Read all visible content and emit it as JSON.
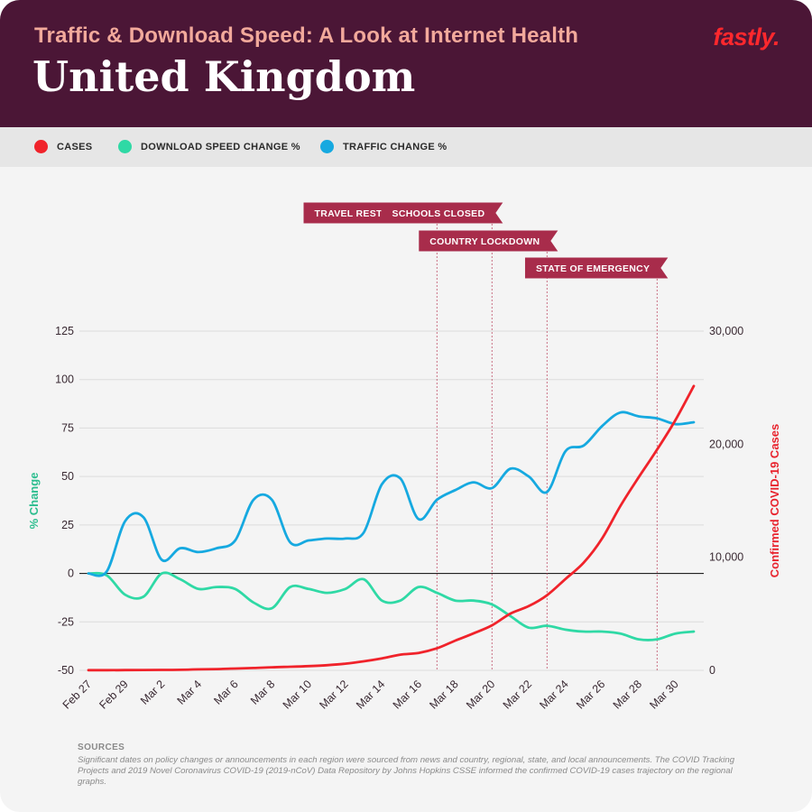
{
  "header": {
    "subtitle": "Traffic & Download Speed: A Look at Internet Health",
    "title": "United Kingdom",
    "logo": "fastly."
  },
  "legend": [
    {
      "label": "CASES",
      "color": "#f0232b"
    },
    {
      "label": "DOWNLOAD SPEED CHANGE %",
      "color": "#2fd9a5"
    },
    {
      "label": "TRAFFIC CHANGE %",
      "color": "#16a9e0"
    }
  ],
  "sources": {
    "title": "SOURCES",
    "text": "Significant dates on policy changes or announcements in each region were sourced from news and country, regional, state, and local announcements. The COVID Tracking Projects and 2019 Novel Coronavirus COVID-19 (2019-nCoV) Data Repository by Johns Hopkins CSSE informed the confirmed COVID-19 cases trajectory on the regional graphs."
  },
  "chart_data": {
    "type": "line",
    "x": [
      "Feb 27",
      "Feb 28",
      "Feb 29",
      "Mar 1",
      "Mar 2",
      "Mar 3",
      "Mar 4",
      "Mar 5",
      "Mar 6",
      "Mar 7",
      "Mar 8",
      "Mar 9",
      "Mar 10",
      "Mar 11",
      "Mar 12",
      "Mar 13",
      "Mar 14",
      "Mar 15",
      "Mar 16",
      "Mar 17",
      "Mar 18",
      "Mar 19",
      "Mar 20",
      "Mar 21",
      "Mar 22",
      "Mar 23",
      "Mar 24",
      "Mar 25",
      "Mar 26",
      "Mar 27",
      "Mar 28",
      "Mar 29",
      "Mar 30",
      "Mar 31"
    ],
    "xticks": [
      "Feb 27",
      "Feb 29",
      "Mar 2",
      "Mar 4",
      "Mar 6",
      "Mar 8",
      "Mar 10",
      "Mar 12",
      "Mar 14",
      "Mar 16",
      "Mar 18",
      "Mar 20",
      "Mar 22",
      "Mar 24",
      "Mar 26",
      "Mar 28",
      "Mar 30"
    ],
    "ylabel_left": "% Change",
    "ylabel_right": "Confirmed COVID-19 Cases",
    "ylim_left": [
      -50,
      125
    ],
    "yticks_left": [
      "125",
      "100",
      "75",
      "50",
      "25",
      "0",
      "-25",
      "-50"
    ],
    "ylim_right": [
      0,
      30000
    ],
    "yticks_right": [
      "30,000",
      "20,000",
      "10,000",
      "0"
    ],
    "series": [
      {
        "name": "TRAFFIC CHANGE %",
        "color": "#16a9e0",
        "axis": "left",
        "values": [
          0,
          1,
          27,
          29,
          7,
          13,
          11,
          13,
          17,
          38,
          38,
          16,
          17,
          18,
          18,
          21,
          46,
          49,
          28,
          38,
          43,
          47,
          44,
          54,
          50,
          42,
          63,
          66,
          76,
          83,
          81,
          80,
          77,
          78
        ]
      },
      {
        "name": "DOWNLOAD SPEED CHANGE %",
        "color": "#2fd9a5",
        "axis": "left",
        "values": [
          0,
          -1,
          -11,
          -12,
          0,
          -3,
          -8,
          -7,
          -8,
          -15,
          -18,
          -7,
          -8,
          -10,
          -8,
          -3,
          -14,
          -14,
          -7,
          -10,
          -14,
          -14,
          -16,
          -22,
          -28,
          -27,
          -29,
          -30,
          -30,
          -31,
          -34,
          -34,
          -31,
          -30
        ]
      },
      {
        "name": "CASES",
        "color": "#f0232b",
        "axis": "right",
        "values": [
          13,
          15,
          20,
          35,
          40,
          51,
          85,
          115,
          163,
          206,
          273,
          321,
          373,
          456,
          590,
          797,
          1061,
          1391,
          1543,
          1950,
          2630,
          3277,
          3983,
          5018,
          5683,
          6650,
          8077,
          9529,
          11658,
          14543,
          17089,
          19522,
          22141,
          25150
        ]
      }
    ],
    "events": [
      {
        "label": "TRAVEL RESTRICTIONS",
        "x": "Mar 17"
      },
      {
        "label": "SCHOOLS CLOSED",
        "x": "Mar 20"
      },
      {
        "label": "COUNTRY LOCKDOWN",
        "x": "Mar 23"
      },
      {
        "label": "STATE OF EMERGENCY",
        "x": "Mar 29"
      }
    ],
    "grid": true,
    "legend_position": "top"
  }
}
